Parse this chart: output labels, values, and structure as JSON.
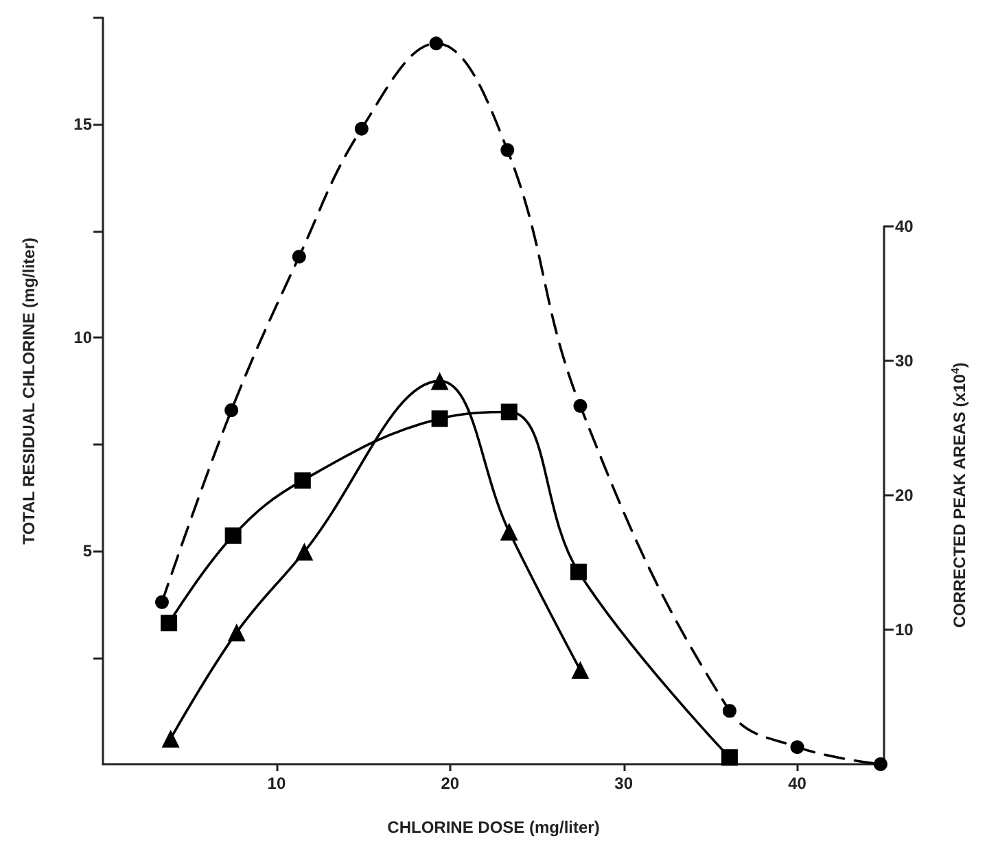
{
  "chart_data": {
    "type": "line",
    "xlabel": "CHLORINE DOSE (mg/liter)",
    "ylabel": "TOTAL RESIDUAL CHLORINE (mg/liter)",
    "y2label": "CORRECTED PEAK AREAS (x10$^{4}$)",
    "xlim": [
      0,
      45
    ],
    "xticks": [
      10,
      20,
      30,
      40
    ],
    "ylim": [
      0,
      17.5
    ],
    "yticks": [
      {
        "value": 2.5,
        "label": null
      },
      5,
      {
        "value": 7.5,
        "label": null
      },
      10,
      {
        "value": 12.5,
        "label": null
      },
      15,
      {
        "value": 17.5,
        "label": null
      }
    ],
    "y2lim": [
      0,
      40
    ],
    "y2ticks": [
      10,
      20,
      30,
      40
    ],
    "series": [
      {
        "color": "#000000",
        "marker": "circle",
        "line_style": "dashed",
        "x": [
          3.4,
          7.4,
          11.3,
          14.9,
          19.2,
          23.3,
          27.5,
          36.1,
          40,
          44.8
        ],
        "values": [
          3.8,
          8.3,
          11.9,
          14.9,
          16.9,
          14.4,
          8.4,
          1.25,
          0.4,
          0
        ]
      },
      {
        "color": "#000000",
        "marker": "square",
        "line_style": "solid",
        "axis": "y2",
        "x": [
          3.8,
          7.5,
          11.5,
          19.4,
          23.4,
          27.4,
          36.1
        ],
        "values": [
          10.5,
          17,
          21.1,
          25.7,
          26.2,
          14.3,
          0.5
        ]
      },
      {
        "color": "#000000",
        "marker": "triangle",
        "line_style": "solid",
        "axis": "y2",
        "x": [
          3.9,
          7.7,
          11.6,
          19.4,
          23.4,
          27.5
        ],
        "values": [
          1.9,
          9.8,
          15.8,
          28.5,
          17.3,
          7.0
        ]
      }
    ]
  }
}
